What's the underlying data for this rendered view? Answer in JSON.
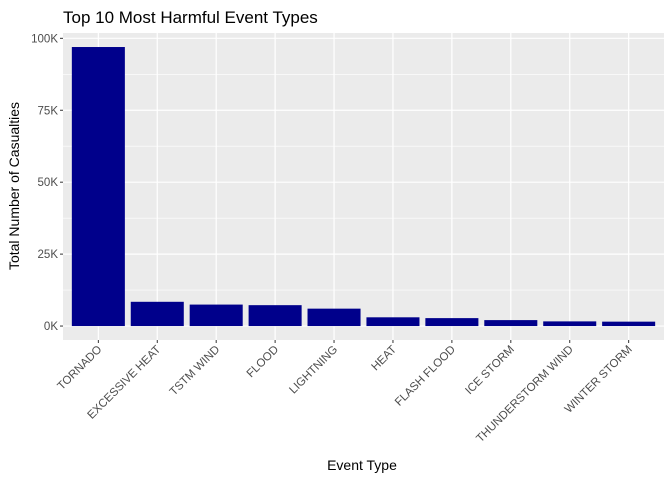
{
  "chart_data": {
    "type": "bar",
    "title": "Top 10 Most Harmful Event Types",
    "xlabel": "Event Type",
    "ylabel": "Total Number of Casualties",
    "categories": [
      "TORNADO",
      "EXCESSIVE HEAT",
      "TSTM WIND",
      "FLOOD",
      "LIGHTNING",
      "HEAT",
      "FLASH FLOOD",
      "ICE STORM",
      "THUNDERSTORM WIND",
      "WINTER STORM"
    ],
    "values": [
      96979,
      8428,
      7461,
      7259,
      6046,
      3037,
      2755,
      2064,
      1621,
      1527
    ],
    "ylim": [
      -4850,
      101850
    ],
    "yticks": [
      0,
      25000,
      50000,
      75000,
      100000
    ],
    "ytick_labels": [
      "0K",
      "25K",
      "50K",
      "75K",
      "100K"
    ],
    "bar_color": "#00008b",
    "panel_background": "#ebebeb",
    "grid_color": "#ffffff",
    "grid": true,
    "legend": "none"
  }
}
